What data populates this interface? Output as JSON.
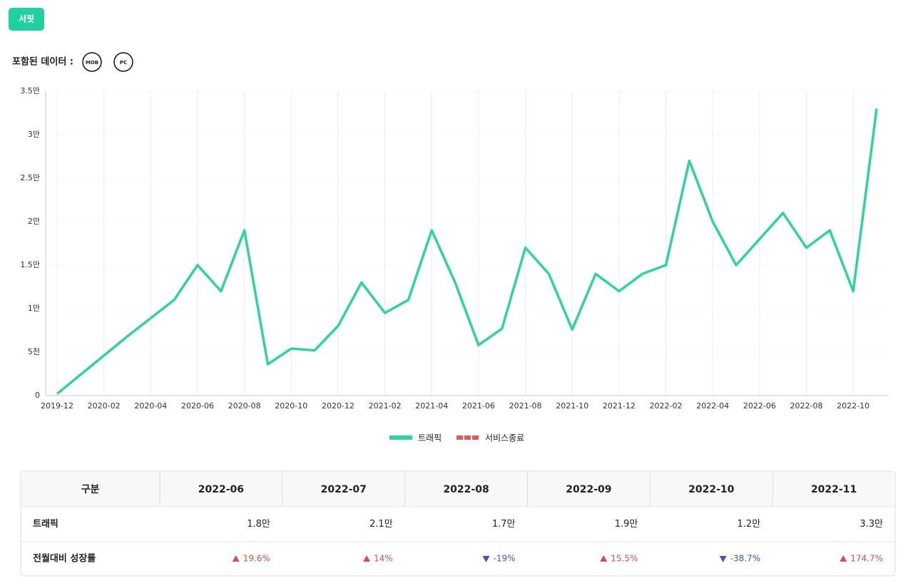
{
  "header": {
    "button": "서핏",
    "included_label": "포함된 데이터 :",
    "badges": [
      "MOB",
      "PC"
    ]
  },
  "chart_data": {
    "type": "line",
    "categories": [
      "2019-12",
      null,
      "2020-02",
      null,
      "2020-04",
      null,
      "2020-06",
      null,
      "2020-08",
      null,
      "2020-10",
      null,
      "2020-12",
      null,
      "2021-02",
      null,
      "2021-04",
      null,
      "2021-06",
      null,
      "2021-08",
      null,
      "2021-10",
      null,
      "2021-12",
      null,
      "2022-02",
      null,
      "2022-04",
      null,
      "2022-06",
      null,
      "2022-08",
      null,
      "2022-10",
      null
    ],
    "series": [
      {
        "name": "트래픽",
        "color": "#2dd3a0",
        "values": [
          200,
          2400,
          4600,
          6800,
          8900,
          11000,
          15000,
          12000,
          19000,
          3600,
          5400,
          5200,
          8000,
          13000,
          9500,
          11000,
          19000,
          13000,
          5800,
          7700,
          17000,
          14000,
          7600,
          14000,
          12000,
          14000,
          15000,
          27000,
          20000,
          15000,
          18000,
          21000,
          17000,
          19000,
          12000,
          33000
        ]
      }
    ],
    "legend_extra": [
      {
        "name": "서비스종료",
        "color": "#e05a5a"
      }
    ],
    "ylim": [
      0,
      35000
    ],
    "yticks": [
      0,
      {
        "value": 5000,
        "label": "5천"
      },
      {
        "value": 10000,
        "label": "1만"
      },
      {
        "value": 15000,
        "label": "1.5만"
      },
      {
        "value": 20000,
        "label": "2만"
      },
      {
        "value": 25000,
        "label": "2.5만"
      },
      {
        "value": 30000,
        "label": "3만"
      },
      {
        "value": 35000,
        "label": "3.5만"
      }
    ],
    "grid": true
  },
  "table": {
    "header": [
      "구분",
      "2022-06",
      "2022-07",
      "2022-08",
      "2022-09",
      "2022-10",
      "2022-11"
    ],
    "rows": [
      [
        "트래픽",
        "1.8만",
        "2.1만",
        "1.7만",
        "1.9만",
        "1.2만",
        "3.3만"
      ],
      [
        "전월대비 성장률",
        {
          "text": "19.6%",
          "trend": "up"
        },
        {
          "text": "14%",
          "trend": "up"
        },
        {
          "text": "-19%",
          "trend": "down"
        },
        {
          "text": "15.5%",
          "trend": "up"
        },
        {
          "text": "-38.7%",
          "trend": "down"
        },
        {
          "text": "174.7%",
          "trend": "up"
        }
      ]
    ]
  }
}
